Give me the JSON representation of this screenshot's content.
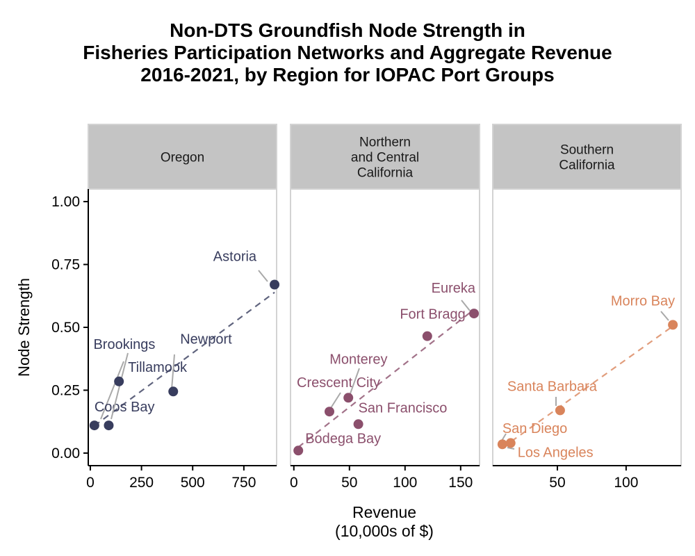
{
  "title_lines": [
    "Non-DTS Groundfish Node Strength in",
    "Fisheries Participation Networks and Aggregate Revenue",
    "2016-2021, by Region for IOPAC Port Groups"
  ],
  "chart_data": {
    "type": "scatter",
    "title": "Non-DTS Groundfish Node Strength in Fisheries Participation Networks and Aggregate Revenue 2016-2021, by Region for IOPAC Port Groups",
    "xlabel_lines": [
      "Revenue",
      "(10,000s of $)"
    ],
    "ylabel": "Node Strength",
    "ylim": [
      -0.05,
      1.05
    ],
    "y_ticks": [
      0,
      0.25,
      0.5,
      0.75,
      1.0
    ],
    "y_tick_labels": [
      "0.00",
      "0.25",
      "0.50",
      "0.75",
      "1.00"
    ],
    "grid": false,
    "trendline": "dashed linear fit per panel",
    "panels": [
      {
        "name_lines": [
          "Oregon"
        ],
        "color": "#383d5e",
        "xlim": [
          -10,
          910
        ],
        "x_ticks": [
          0,
          250,
          500,
          750
        ],
        "points": [
          {
            "label": "Coos Bay",
            "x": 20,
            "y": 0.11
          },
          {
            "label": "Brookings",
            "x": 90,
            "y": 0.11
          },
          {
            "label": "Tillamook",
            "x": 140,
            "y": 0.285
          },
          {
            "label": "Newport",
            "x": 405,
            "y": 0.245
          },
          {
            "label": "Astoria",
            "x": 900,
            "y": 0.67
          }
        ]
      },
      {
        "name_lines": [
          "Northern",
          "and Central",
          "California"
        ],
        "color": "#8b4f6c",
        "xlim": [
          -3,
          167
        ],
        "x_ticks": [
          0,
          50,
          100,
          150
        ],
        "points": [
          {
            "label": "Bodega Bay",
            "x": 4,
            "y": 0.01
          },
          {
            "label": "Crescent City",
            "x": 32,
            "y": 0.165
          },
          {
            "label": "Monterey",
            "x": 49,
            "y": 0.22
          },
          {
            "label": "San Francisco",
            "x": 58,
            "y": 0.115
          },
          {
            "label": "Fort Bragg",
            "x": 120,
            "y": 0.465
          },
          {
            "label": "Eureka",
            "x": 162,
            "y": 0.555
          }
        ]
      },
      {
        "name_lines": [
          "Southern",
          "California"
        ],
        "color": "#d9845b",
        "xlim": [
          3,
          140
        ],
        "x_ticks": [
          50,
          100
        ],
        "points": [
          {
            "label": "San Diego",
            "x": 10,
            "y": 0.035
          },
          {
            "label": "Los Angeles",
            "x": 16,
            "y": 0.04
          },
          {
            "label": "Santa Barbara",
            "x": 52,
            "y": 0.17
          },
          {
            "label": "Morro Bay",
            "x": 134,
            "y": 0.51
          }
        ]
      }
    ]
  }
}
